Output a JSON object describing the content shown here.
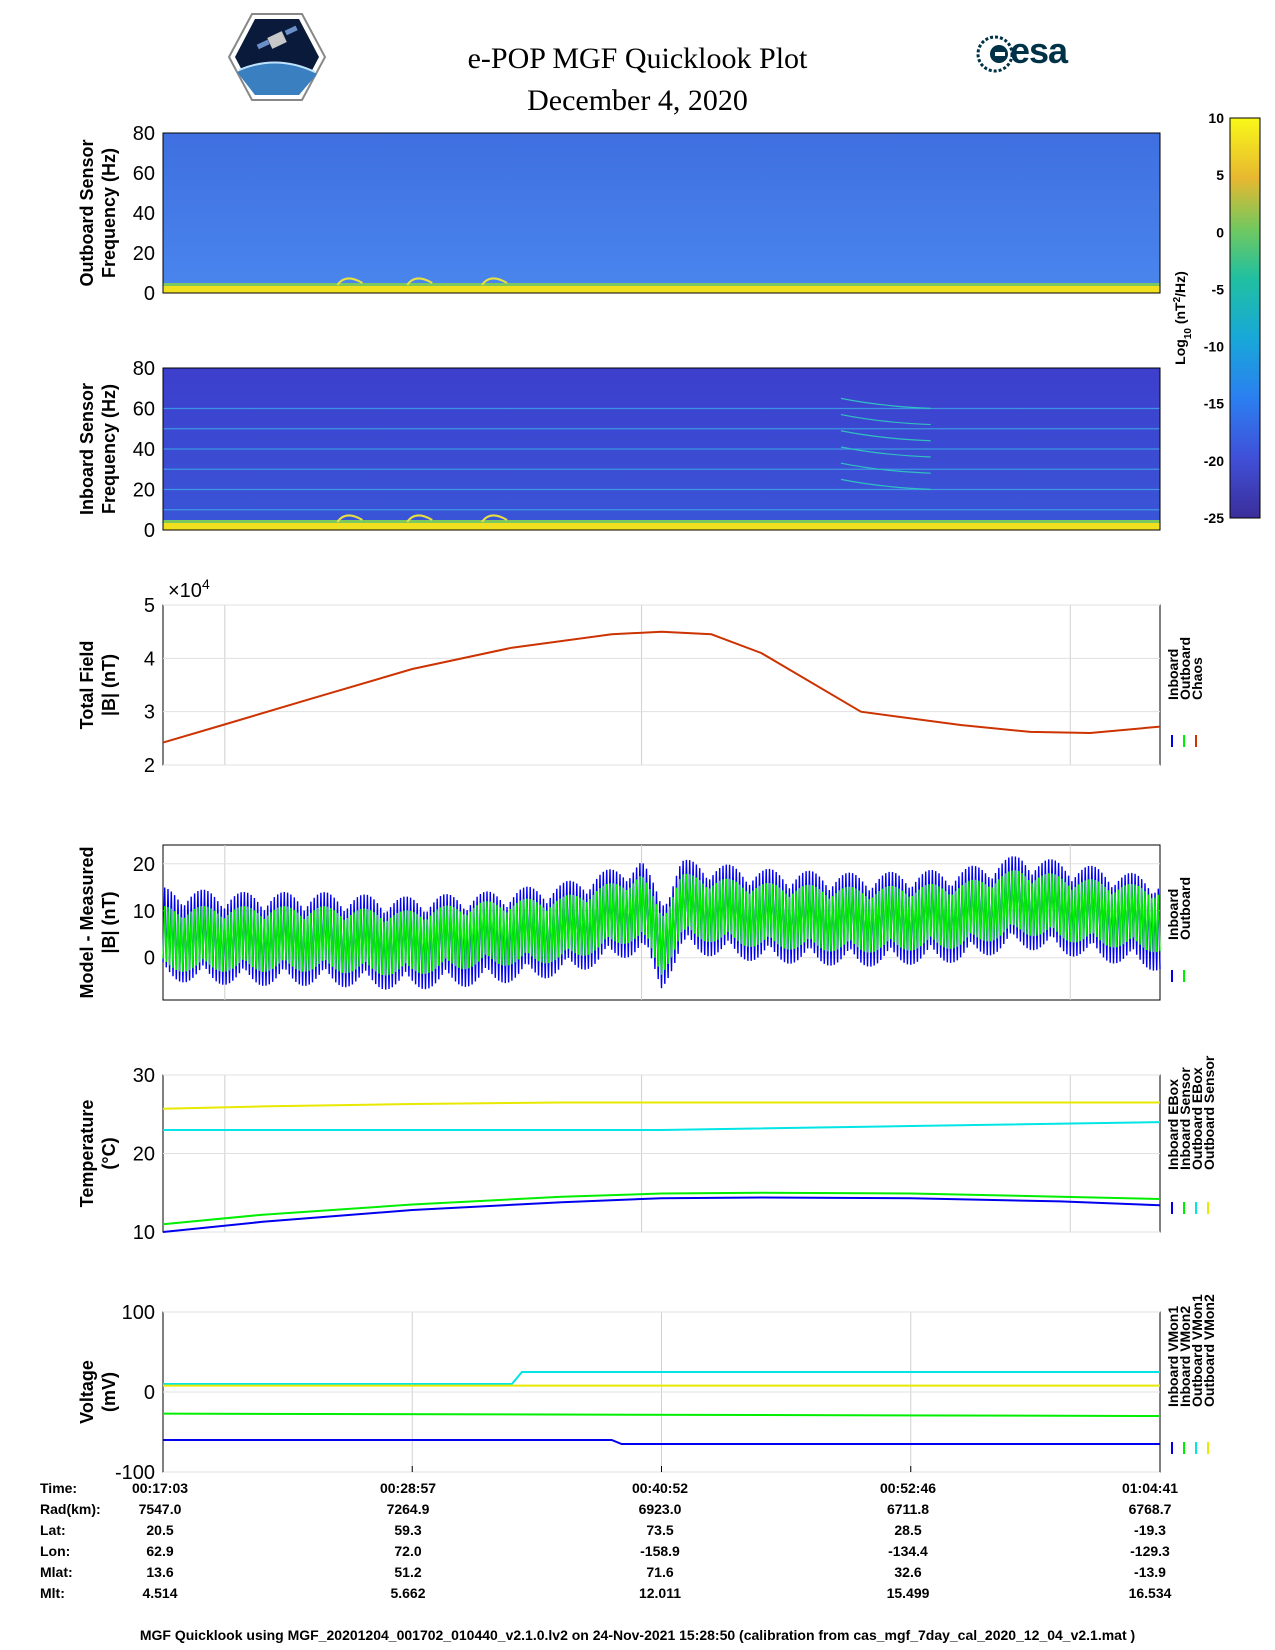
{
  "title": {
    "line1": "e-POP MGF Quicklook Plot",
    "line2": "December 4, 2020"
  },
  "logos": {
    "left": "cassiope-mission-patch",
    "right_text": "esa"
  },
  "colorbar": {
    "label": "Log10 (nT2/Hz)",
    "label_main": "Log",
    "label_sub": "10",
    "label_rest": " (nT",
    "label_sup": "2",
    "label_tail": "/Hz)",
    "ticks": [
      "10",
      "5",
      "0",
      "-5",
      "-10",
      "-15",
      "-20",
      "-25"
    ],
    "range": [
      -25,
      10
    ]
  },
  "chart_data": [
    {
      "type": "heatmap",
      "name": "outboard-spectrogram",
      "ylabel_line1": "Outboard Sensor",
      "ylabel_line2": "Frequency (Hz)",
      "ylim": [
        0,
        80
      ],
      "yticks": [
        "80",
        "60",
        "40",
        "20",
        "0"
      ]
    },
    {
      "type": "heatmap",
      "name": "inboard-spectrogram",
      "ylabel_line1": "Inboard Sensor",
      "ylabel_line2": "Frequency (Hz)",
      "ylim": [
        0,
        80
      ],
      "yticks": [
        "80",
        "60",
        "40",
        "20",
        "0"
      ]
    },
    {
      "type": "line",
      "name": "total-field",
      "ylabel_line1": "Total Field",
      "ylabel_line2": "|B| (nT)",
      "exponent_label": "×10",
      "exponent_power": "4",
      "ylim": [
        2,
        5
      ],
      "yticks": [
        "5",
        "4",
        "3",
        "2"
      ],
      "legend": [
        "Inboard",
        "Outboard",
        "Chaos"
      ],
      "series": [
        {
          "name": "Chaos",
          "color": "#cc3300",
          "x": [
            0,
            0.06,
            0.15,
            0.25,
            0.35,
            0.45,
            0.5,
            0.55,
            0.6,
            0.7,
            0.8,
            0.87,
            0.93,
            1.0
          ],
          "values": [
            2.42,
            2.75,
            3.25,
            3.8,
            4.2,
            4.45,
            4.5,
            4.45,
            4.1,
            3.0,
            2.75,
            2.62,
            2.6,
            2.72
          ]
        }
      ]
    },
    {
      "type": "line",
      "name": "model-measured",
      "ylabel_line1": "Model - Measured",
      "ylabel_line2": "|B| (nT)",
      "ylim": [
        -9,
        24
      ],
      "yticks": [
        "20",
        "10",
        "0"
      ],
      "legend": [
        "Inboard",
        "Outboard"
      ],
      "series": [
        {
          "name": "Inboard",
          "color": "#0000ee",
          "x": [
            0,
            0.08,
            0.16,
            0.24,
            0.32,
            0.4,
            0.45,
            0.48,
            0.5,
            0.52,
            0.6,
            0.7,
            0.8,
            0.86,
            0.92,
            1.0
          ],
          "values": [
            5,
            4,
            4,
            3,
            4,
            6,
            9,
            11,
            3,
            11,
            9,
            8,
            9,
            12,
            10,
            7
          ]
        },
        {
          "name": "Outboard",
          "color": "#00ee00",
          "x": [
            0,
            0.08,
            0.16,
            0.24,
            0.32,
            0.4,
            0.45,
            0.48,
            0.5,
            0.52,
            0.6,
            0.7,
            0.8,
            0.86,
            0.92,
            1.0
          ],
          "values": [
            4,
            4,
            4,
            3,
            5,
            6,
            9,
            11,
            3,
            11,
            9,
            8,
            9,
            12,
            10,
            8
          ]
        }
      ]
    },
    {
      "type": "line",
      "name": "temperature",
      "ylabel_line1": "Temperature",
      "ylabel_line2": "(°C)",
      "ylim": [
        10,
        30
      ],
      "yticks": [
        "30",
        "20",
        "10"
      ],
      "legend": [
        "Inboard EBox",
        "Inboard Sensor",
        "Outboard EBox",
        "Outboard Sensor"
      ],
      "series": [
        {
          "name": "Inboard EBox",
          "color": "#0000ee",
          "x": [
            0,
            0.1,
            0.25,
            0.4,
            0.5,
            0.6,
            0.75,
            0.9,
            1.0
          ],
          "values": [
            10,
            11.3,
            12.8,
            13.8,
            14.3,
            14.4,
            14.3,
            13.9,
            13.4
          ]
        },
        {
          "name": "Inboard Sensor",
          "color": "#00ee00",
          "x": [
            0,
            0.1,
            0.25,
            0.4,
            0.5,
            0.6,
            0.75,
            0.9,
            1.0
          ],
          "values": [
            11,
            12.2,
            13.5,
            14.5,
            14.9,
            15.0,
            14.9,
            14.5,
            14.2
          ]
        },
        {
          "name": "Outboard EBox",
          "color": "#00e5e5",
          "x": [
            0,
            0.25,
            0.5,
            0.75,
            1.0
          ],
          "values": [
            23,
            23,
            23,
            23.5,
            24
          ]
        },
        {
          "name": "Outboard Sensor",
          "color": "#e8e800",
          "x": [
            0,
            0.1,
            0.25,
            0.4,
            0.5,
            0.75,
            1.0
          ],
          "values": [
            25.7,
            26.0,
            26.3,
            26.5,
            26.5,
            26.5,
            26.5
          ]
        }
      ]
    },
    {
      "type": "line",
      "name": "voltage",
      "ylabel_line1": "Voltage",
      "ylabel_line2": "(mV)",
      "ylim": [
        -100,
        100
      ],
      "yticks": [
        "100",
        "0",
        "-100"
      ],
      "legend": [
        "Inboard VMon1",
        "Inboard VMon2",
        "Outboard VMon1",
        "Outboard VMon2"
      ],
      "series": [
        {
          "name": "Inboard VMon1",
          "color": "#0000ee",
          "x": [
            0,
            0.45,
            0.46,
            1.0
          ],
          "values": [
            -60,
            -60,
            -65,
            -65
          ]
        },
        {
          "name": "Inboard VMon2",
          "color": "#00ee00",
          "x": [
            0,
            1.0
          ],
          "values": [
            -27,
            -30
          ]
        },
        {
          "name": "Outboard VMon1",
          "color": "#00e5e5",
          "x": [
            0,
            0.35,
            0.36,
            1.0
          ],
          "values": [
            10,
            10,
            25,
            25
          ]
        },
        {
          "name": "Outboard VMon2",
          "color": "#e8e800",
          "x": [
            0,
            1.0
          ],
          "values": [
            8,
            8
          ]
        }
      ]
    }
  ],
  "ephemeris": {
    "labels": [
      "Time:",
      "Rad(km):",
      "Lat:",
      "Lon:",
      "Mlat:",
      "Mlt:"
    ],
    "columns": [
      [
        "00:17:03",
        "7547.0",
        "20.5",
        "62.9",
        "13.6",
        "4.514"
      ],
      [
        "00:28:57",
        "7264.9",
        "59.3",
        "72.0",
        "51.2",
        "5.662"
      ],
      [
        "00:40:52",
        "6923.0",
        "73.5",
        "-158.9",
        "71.6",
        "12.011"
      ],
      [
        "00:52:46",
        "6711.8",
        "28.5",
        "-134.4",
        "32.6",
        "15.499"
      ],
      [
        "01:04:41",
        "6768.7",
        "-19.3",
        "-129.3",
        "-13.9",
        "16.534"
      ]
    ]
  },
  "footer": "MGF Quicklook using MGF_20201204_001702_010440_v2.1.0.lv2 on 24-Nov-2021 15:28:50 (calibration from cas_mgf_7day_cal_2020_12_04_v2.1.mat )"
}
